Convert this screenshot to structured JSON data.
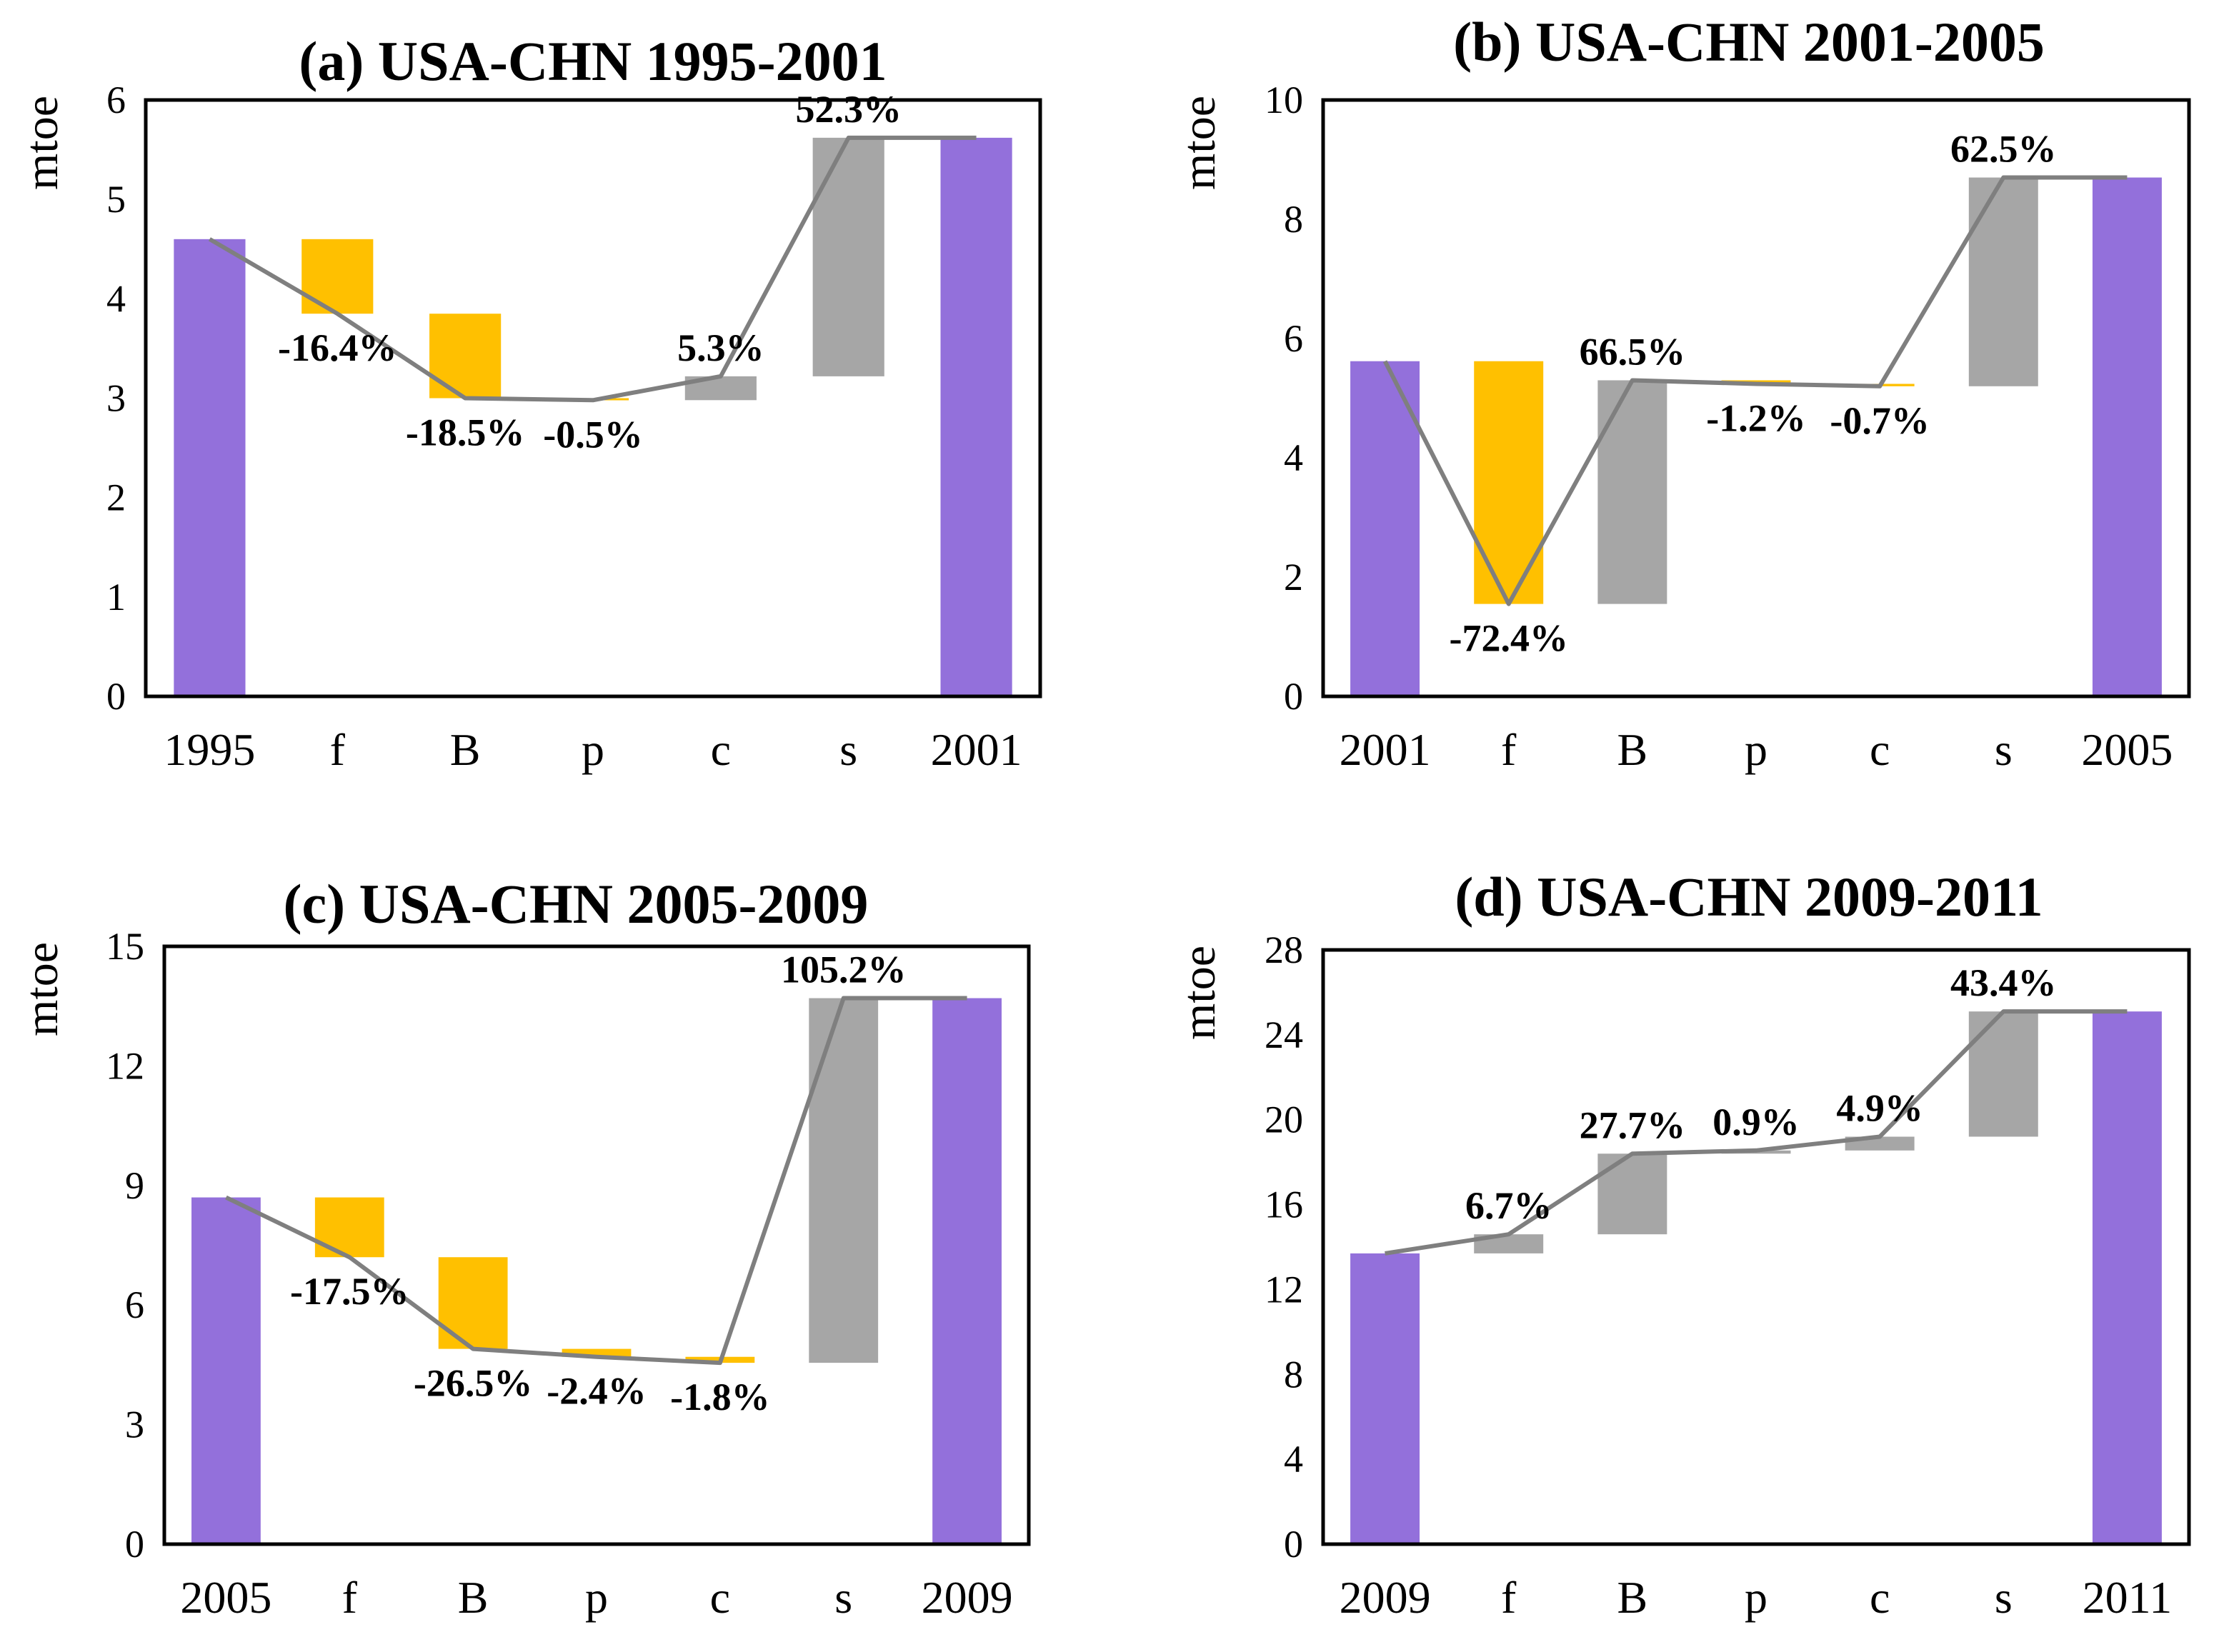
{
  "colors": {
    "total": "#9370DB",
    "decrease": "#FFC000",
    "increase": "#A6A6A6",
    "line": "#7F7F7F",
    "axis": "#000000"
  },
  "chart_data": [
    {
      "type": "bar",
      "subtype": "waterfall",
      "title": "(a) USA-CHN 1995-2001",
      "ylabel": "mtoe",
      "ylim": [
        0,
        6
      ],
      "yticks": [
        "0",
        "1",
        "2",
        "3",
        "4",
        "5",
        "6"
      ],
      "categories": [
        "1995",
        "f",
        "B",
        "p",
        "c",
        "s",
        "2001"
      ],
      "bars": [
        {
          "low": 0,
          "high": 4.6,
          "kind": "total"
        },
        {
          "low": 3.85,
          "high": 4.6,
          "kind": "decrease"
        },
        {
          "low": 3.0,
          "high": 3.85,
          "kind": "decrease"
        },
        {
          "low": 2.98,
          "high": 3.0,
          "kind": "decrease"
        },
        {
          "low": 2.98,
          "high": 3.22,
          "kind": "increase"
        },
        {
          "low": 3.22,
          "high": 5.62,
          "kind": "increase"
        },
        {
          "low": 0,
          "high": 5.62,
          "kind": "total"
        }
      ],
      "line": [
        4.6,
        3.85,
        3.0,
        2.98,
        3.22,
        5.62,
        5.62
      ],
      "labels": [
        "",
        "-16.4%",
        "-18.5%",
        "-0.5%",
        "5.3%",
        "52.3%",
        ""
      ]
    },
    {
      "type": "bar",
      "subtype": "waterfall",
      "title": "(b) USA-CHN 2001-2005",
      "ylabel": "mtoe",
      "ylim": [
        0,
        10
      ],
      "yticks": [
        "0",
        "2",
        "4",
        "6",
        "8",
        "10"
      ],
      "categories": [
        "2001",
        "f",
        "B",
        "p",
        "c",
        "s",
        "2005"
      ],
      "bars": [
        {
          "low": 0,
          "high": 5.62,
          "kind": "total"
        },
        {
          "low": 1.55,
          "high": 5.62,
          "kind": "decrease"
        },
        {
          "low": 1.55,
          "high": 5.3,
          "kind": "increase"
        },
        {
          "low": 5.24,
          "high": 5.3,
          "kind": "decrease"
        },
        {
          "low": 5.2,
          "high": 5.24,
          "kind": "decrease"
        },
        {
          "low": 5.2,
          "high": 8.7,
          "kind": "increase"
        },
        {
          "low": 0,
          "high": 8.7,
          "kind": "total"
        }
      ],
      "line": [
        5.62,
        1.55,
        5.3,
        5.24,
        5.2,
        8.7,
        8.7
      ],
      "labels": [
        "",
        "-72.4%",
        "66.5%",
        "-1.2%",
        "-0.7%",
        "62.5%",
        ""
      ]
    },
    {
      "type": "bar",
      "subtype": "waterfall",
      "title": "(c) USA-CHN 2005-2009",
      "ylabel": "mtoe",
      "ylim": [
        0,
        15
      ],
      "yticks": [
        "0",
        "3",
        "6",
        "9",
        "12",
        "15"
      ],
      "categories": [
        "2005",
        "f",
        "B",
        "p",
        "c",
        "s",
        "2009"
      ],
      "bars": [
        {
          "low": 0,
          "high": 8.7,
          "kind": "total"
        },
        {
          "low": 7.2,
          "high": 8.7,
          "kind": "decrease"
        },
        {
          "low": 4.9,
          "high": 7.2,
          "kind": "decrease"
        },
        {
          "low": 4.7,
          "high": 4.9,
          "kind": "decrease"
        },
        {
          "low": 4.55,
          "high": 4.7,
          "kind": "decrease"
        },
        {
          "low": 4.55,
          "high": 13.7,
          "kind": "increase"
        },
        {
          "low": 0,
          "high": 13.7,
          "kind": "total"
        }
      ],
      "line": [
        8.7,
        7.2,
        4.9,
        4.7,
        4.55,
        13.7,
        13.7
      ],
      "labels": [
        "",
        "-17.5%",
        "-26.5%",
        "-2.4%",
        "-1.8%",
        "105.2%",
        ""
      ]
    },
    {
      "type": "bar",
      "subtype": "waterfall",
      "title": "(d) USA-CHN 2009-2011",
      "ylabel": "mtoe",
      "ylim": [
        0,
        28
      ],
      "yticks": [
        "0",
        "4",
        "8",
        "12",
        "16",
        "20",
        "24",
        "28"
      ],
      "categories": [
        "2009",
        "f",
        "B",
        "p",
        "c",
        "s",
        "2011"
      ],
      "bars": [
        {
          "low": 0,
          "high": 13.7,
          "kind": "total"
        },
        {
          "low": 13.7,
          "high": 14.6,
          "kind": "increase"
        },
        {
          "low": 14.6,
          "high": 18.4,
          "kind": "increase"
        },
        {
          "low": 18.4,
          "high": 18.55,
          "kind": "increase"
        },
        {
          "low": 18.55,
          "high": 19.2,
          "kind": "increase"
        },
        {
          "low": 19.2,
          "high": 25.1,
          "kind": "increase"
        },
        {
          "low": 0,
          "high": 25.1,
          "kind": "total"
        }
      ],
      "line": [
        13.7,
        14.6,
        18.4,
        18.55,
        19.2,
        25.1,
        25.1
      ],
      "labels": [
        "",
        "6.7%",
        "27.7%",
        "0.9%",
        "4.9%",
        "43.4%",
        ""
      ]
    }
  ]
}
